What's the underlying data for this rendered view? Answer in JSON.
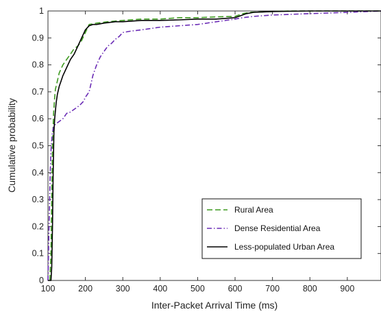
{
  "chart_data": {
    "type": "line",
    "title": "",
    "xlabel": "Inter-Packet Arrival Time (ms)",
    "ylabel": "Cumulative probability",
    "xlim": [
      100,
      990
    ],
    "ylim": [
      0,
      1
    ],
    "xticks": [
      100,
      200,
      300,
      400,
      500,
      600,
      700,
      800,
      900
    ],
    "yticks": [
      0,
      0.1,
      0.2,
      0.3,
      0.4,
      0.5,
      0.6,
      0.7,
      0.8,
      0.9,
      1
    ],
    "ytick_labels": [
      "0",
      "0.1",
      "0.2",
      "0.3",
      "0.4",
      "0.5",
      "0.6",
      "0.7",
      "0.8",
      "0.9",
      "1"
    ],
    "grid": false,
    "legend_position": "bottom-right",
    "series": [
      {
        "name": "Rural Area",
        "color": "#3d9a1f",
        "style": "dashed",
        "x": [
          105,
          108,
          110,
          112,
          115,
          118,
          120,
          125,
          130,
          140,
          150,
          160,
          170,
          180,
          190,
          200,
          210,
          230,
          260,
          300,
          350,
          400,
          450,
          500,
          550,
          600,
          620,
          640,
          700,
          750,
          800,
          850,
          900,
          990
        ],
        "y": [
          0,
          0.1,
          0.3,
          0.5,
          0.62,
          0.68,
          0.71,
          0.74,
          0.77,
          0.8,
          0.82,
          0.84,
          0.86,
          0.87,
          0.89,
          0.92,
          0.95,
          0.955,
          0.96,
          0.965,
          0.97,
          0.97,
          0.975,
          0.975,
          0.978,
          0.98,
          0.99,
          0.995,
          0.998,
          1,
          1,
          1,
          1,
          1
        ]
      },
      {
        "name": "Dense Residential Area",
        "color": "#6a2bb5",
        "style": "dashdot",
        "x": [
          100,
          102,
          104,
          106,
          108,
          110,
          112,
          115,
          120,
          130,
          140,
          150,
          160,
          165,
          175,
          185,
          195,
          200,
          210,
          220,
          230,
          240,
          250,
          260,
          270,
          280,
          290,
          300,
          320,
          350,
          400,
          450,
          500,
          550,
          600,
          620,
          650,
          700,
          800,
          900,
          990
        ],
        "y": [
          0,
          0.15,
          0.28,
          0.4,
          0.48,
          0.52,
          0.55,
          0.57,
          0.58,
          0.59,
          0.6,
          0.62,
          0.625,
          0.63,
          0.64,
          0.65,
          0.665,
          0.68,
          0.7,
          0.76,
          0.8,
          0.83,
          0.85,
          0.87,
          0.88,
          0.895,
          0.905,
          0.92,
          0.925,
          0.93,
          0.94,
          0.945,
          0.95,
          0.96,
          0.97,
          0.975,
          0.98,
          0.985,
          0.99,
          0.995,
          1
        ]
      },
      {
        "name": "Less-populated Urban Area",
        "color": "#000000",
        "style": "solid",
        "x": [
          100,
          108,
          110,
          112,
          114,
          116,
          118,
          120,
          122,
          125,
          130,
          135,
          140,
          150,
          160,
          170,
          180,
          190,
          200,
          210,
          220,
          230,
          250,
          280,
          300,
          350,
          400,
          450,
          500,
          550,
          600,
          610,
          630,
          650,
          700,
          800,
          900,
          990
        ],
        "y": [
          0,
          0,
          0.05,
          0.2,
          0.4,
          0.55,
          0.6,
          0.63,
          0.66,
          0.69,
          0.72,
          0.74,
          0.76,
          0.79,
          0.82,
          0.84,
          0.87,
          0.9,
          0.93,
          0.945,
          0.95,
          0.95,
          0.955,
          0.96,
          0.96,
          0.965,
          0.965,
          0.967,
          0.97,
          0.97,
          0.975,
          0.98,
          0.99,
          0.995,
          0.998,
          1,
          1,
          1
        ]
      }
    ]
  }
}
